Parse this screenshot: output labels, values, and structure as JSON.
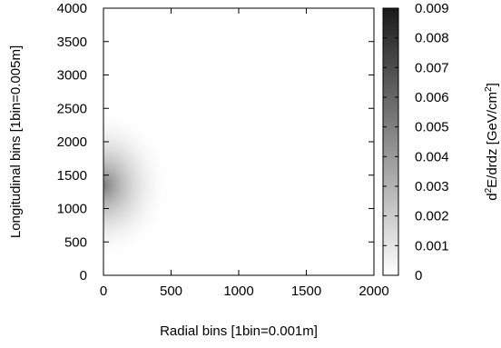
{
  "chart_data": {
    "type": "heatmap",
    "xlabel": "Radial bins [1bin=0.001m]",
    "ylabel": "Longitudinal bins [1bin=0.005m]",
    "colorbar_label": "d2E/drdz [GeV/cm2]",
    "colorbar_label_parts": {
      "d": "d",
      "sup1": "2",
      "mid": "E/drdz [GeV/cm",
      "sup2": "2",
      "end": "]"
    },
    "xlim": [
      0,
      2000
    ],
    "ylim": [
      0,
      4000
    ],
    "x_ticks": [
      "0",
      "500",
      "1000",
      "1500",
      "2000"
    ],
    "y_ticks": [
      "0",
      "500",
      "1000",
      "1500",
      "2000",
      "2500",
      "3000",
      "3500",
      "4000"
    ],
    "colorbar_range": [
      0,
      0.009
    ],
    "colorbar_ticks": [
      "0",
      "0.001",
      "0.002",
      "0.003",
      "0.004",
      "0.005",
      "0.006",
      "0.007",
      "0.008",
      "0.009"
    ],
    "colormap": "grayscale, white (0) to black (0.009)",
    "hotspot": {
      "x": 0,
      "y": 1350,
      "value": 0.004
    },
    "grid": false
  }
}
